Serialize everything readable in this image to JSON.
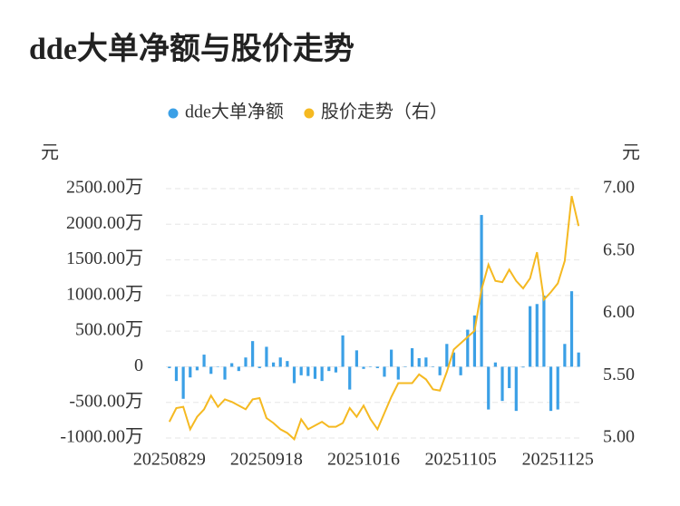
{
  "chart_data": {
    "type": "bar-line",
    "title": "dde大单净额与股价走势",
    "y_label": "元",
    "y2_label": "元",
    "categories": [
      "20250829",
      null,
      null,
      null,
      null,
      null,
      null,
      null,
      null,
      null,
      null,
      null,
      null,
      null,
      "20250918",
      null,
      null,
      null,
      null,
      null,
      null,
      null,
      null,
      null,
      null,
      null,
      null,
      null,
      "20251016",
      null,
      null,
      null,
      null,
      null,
      null,
      null,
      null,
      null,
      null,
      null,
      null,
      null,
      "20251105",
      null,
      null,
      null,
      null,
      null,
      null,
      null,
      null,
      null,
      null,
      null,
      null,
      null,
      "20251125",
      null,
      null,
      null
    ],
    "series": [
      {
        "name": "dde大单净额",
        "type": "bar",
        "color": "#3ba0e6",
        "values": [
          -20,
          -200,
          -450,
          -150,
          -50,
          170,
          -100,
          0,
          -180,
          50,
          -60,
          130,
          360,
          -20,
          280,
          60,
          130,
          80,
          -230,
          -120,
          -130,
          -170,
          -200,
          -60,
          -80,
          440,
          -320,
          230,
          -30,
          0,
          -20,
          -140,
          240,
          -180,
          0,
          260,
          120,
          130,
          0,
          -120,
          320,
          200,
          -120,
          520,
          720,
          2130,
          -600,
          60,
          -480,
          -300,
          -620,
          -10,
          850,
          880,
          1000,
          -620,
          -600,
          320,
          1060,
          200
        ]
      },
      {
        "name": "股价走势（右）",
        "type": "line",
        "axis": "y2",
        "color": "#f5b921",
        "values": [
          5.13,
          5.24,
          5.25,
          5.07,
          5.17,
          5.23,
          5.34,
          5.25,
          5.31,
          5.29,
          5.26,
          5.23,
          5.31,
          5.32,
          5.16,
          5.12,
          5.07,
          5.04,
          4.99,
          5.15,
          5.07,
          5.1,
          5.13,
          5.09,
          5.09,
          5.12,
          5.24,
          5.17,
          5.26,
          5.15,
          5.07,
          5.2,
          5.33,
          5.44,
          5.44,
          5.44,
          5.51,
          5.47,
          5.39,
          5.38,
          5.53,
          5.71,
          5.76,
          5.81,
          5.86,
          6.19,
          6.39,
          6.26,
          6.25,
          6.35,
          6.26,
          6.2,
          6.28,
          6.49,
          6.11,
          6.17,
          6.24,
          6.42,
          6.94,
          6.7
        ]
      }
    ],
    "ylim": [
      -1000,
      2500
    ],
    "yticks": [
      {
        "value": -1000,
        "label": "-1000.00万"
      },
      {
        "value": -500,
        "label": "-500.00万"
      },
      0,
      {
        "value": 500,
        "label": "500.00万"
      },
      {
        "value": 1000,
        "label": "1000.00万"
      },
      {
        "value": 1500,
        "label": "1500.00万"
      },
      {
        "value": 2000,
        "label": "2000.00万"
      },
      {
        "value": 2500,
        "label": "2500.00万"
      }
    ],
    "y2lim": [
      5,
      7
    ],
    "y2ticks": [
      {
        "value": 5,
        "label": "5.00"
      },
      {
        "value": 5.5,
        "label": "5.50"
      },
      {
        "value": 6,
        "label": "6.00"
      },
      {
        "value": 6.5,
        "label": "6.50"
      },
      {
        "value": 7,
        "label": "7.00"
      }
    ],
    "grid": true,
    "legend": "top"
  }
}
